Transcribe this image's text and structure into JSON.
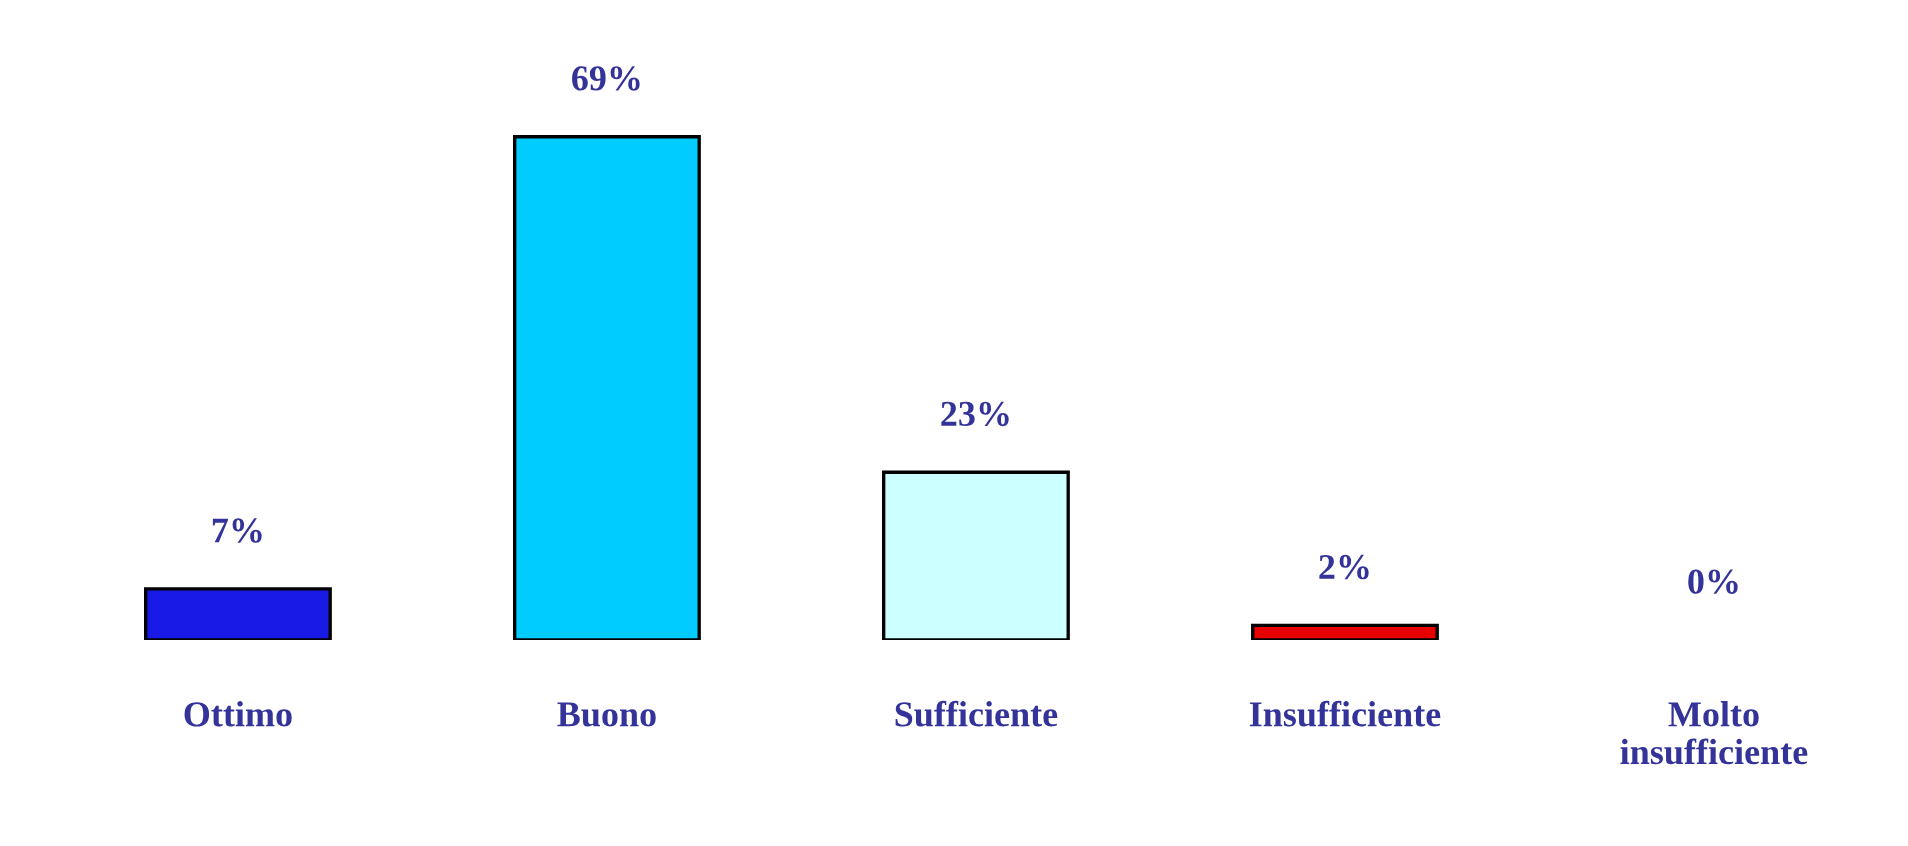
{
  "chart_data": {
    "type": "bar",
    "categories": [
      "Ottimo",
      "Buono",
      "Sufficiente",
      "Insufficiente",
      "Molto\ninsufficiente"
    ],
    "values": [
      7,
      69,
      23,
      2,
      0
    ],
    "colors": [
      "#1a1ae6",
      "#00ccff",
      "#ccffff",
      "#e60000",
      null
    ],
    "value_labels": [
      "7%",
      "69%",
      "23%",
      "2%",
      "0%"
    ],
    "grid": false,
    "legend": false
  }
}
